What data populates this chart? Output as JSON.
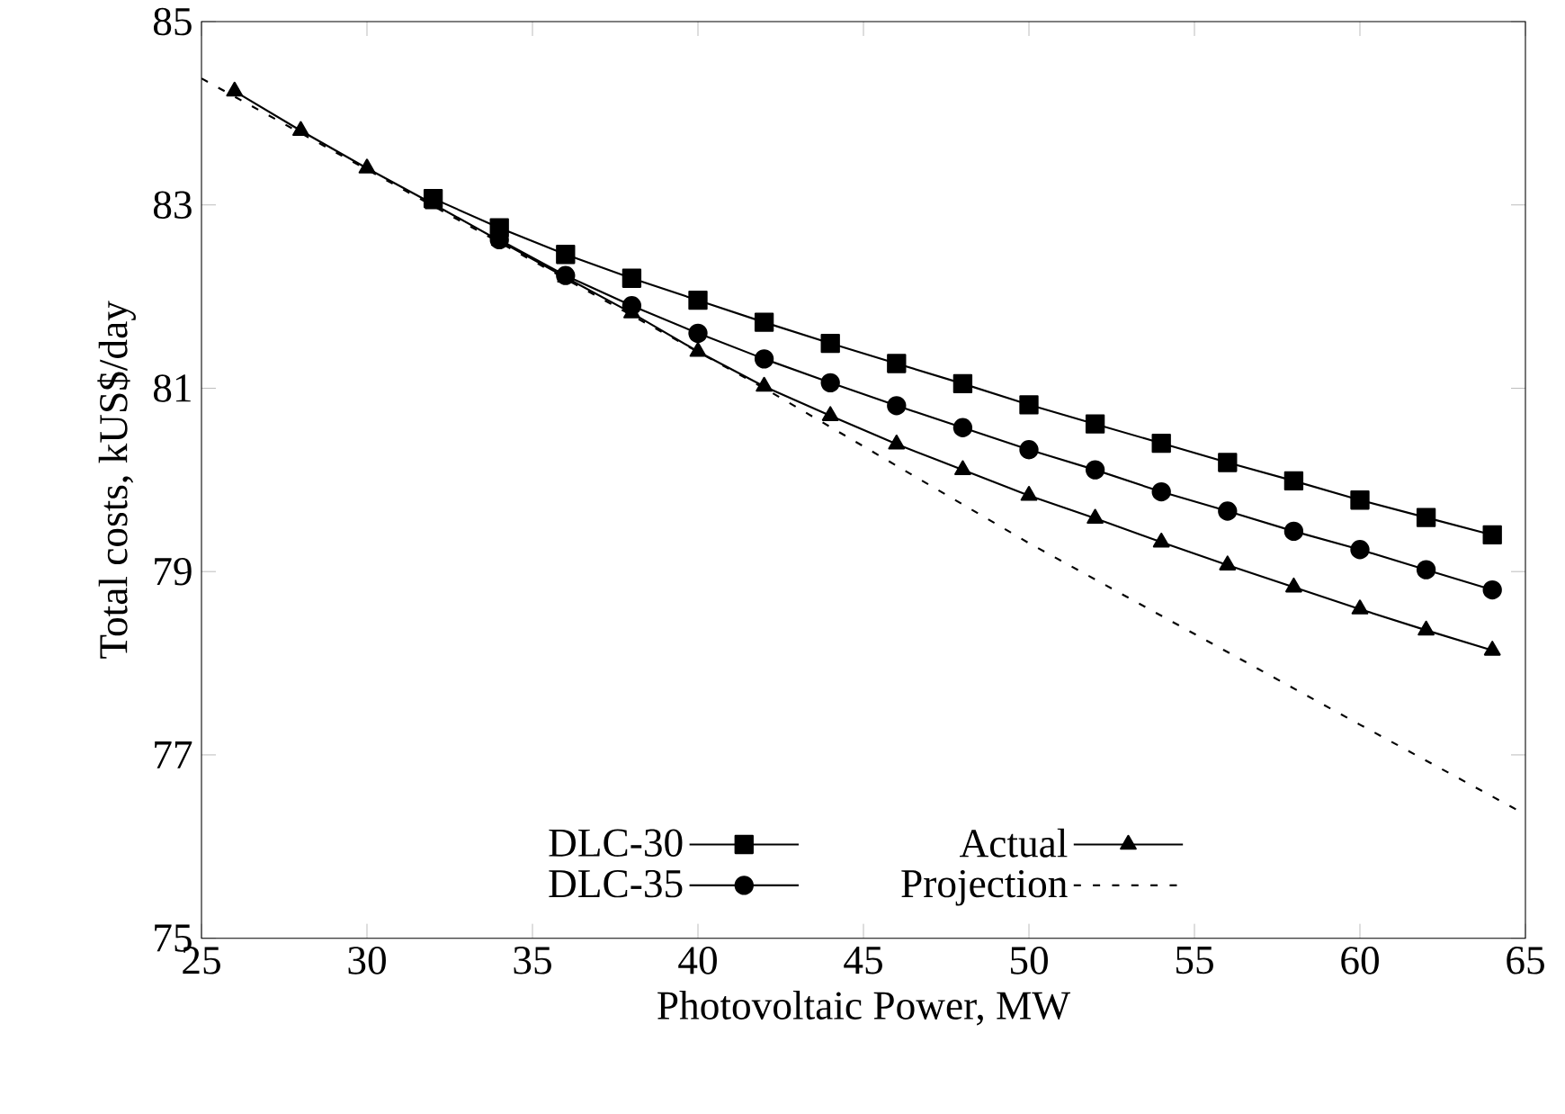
{
  "chart_data": {
    "type": "line",
    "xlabel": "Photovoltaic Power, MW",
    "ylabel": "Total costs, kUS$/day",
    "xlim": [
      25,
      65
    ],
    "ylim": [
      75,
      85
    ],
    "xticks": [
      25,
      30,
      35,
      40,
      45,
      50,
      55,
      60,
      65
    ],
    "yticks": [
      75,
      77,
      79,
      81,
      83,
      85
    ],
    "grid": false,
    "legend": "bottom",
    "series": [
      {
        "name": "DLC-30",
        "color": "#000000",
        "marker": "square",
        "line_style": "solid",
        "x": [
          32,
          34,
          36,
          38,
          40,
          42,
          44,
          46,
          48,
          50,
          52,
          54,
          56,
          58,
          60,
          62,
          64
        ],
        "values": [
          83.07,
          82.75,
          82.46,
          82.2,
          81.96,
          81.72,
          81.49,
          81.27,
          81.05,
          80.82,
          80.61,
          80.4,
          80.19,
          79.99,
          79.78,
          79.59,
          79.4
        ]
      },
      {
        "name": "DLC-35",
        "color": "#000000",
        "marker": "circle",
        "line_style": "solid",
        "x": [
          34,
          36,
          38,
          40,
          42,
          44,
          46,
          48,
          50,
          52,
          54,
          56,
          58,
          60,
          62,
          64
        ],
        "values": [
          82.62,
          82.23,
          81.9,
          81.6,
          81.32,
          81.06,
          80.81,
          80.57,
          80.33,
          80.11,
          79.87,
          79.66,
          79.44,
          79.24,
          79.02,
          78.8
        ]
      },
      {
        "name": "Actual",
        "color": "#000000",
        "marker": "triangle",
        "line_style": "solid",
        "x": [
          26,
          28,
          30,
          32,
          34,
          36,
          38,
          40,
          42,
          44,
          46,
          48,
          50,
          52,
          54,
          56,
          58,
          60,
          62,
          64
        ],
        "values": [
          84.24,
          83.81,
          83.4,
          83.01,
          82.61,
          82.21,
          81.82,
          81.4,
          81.02,
          80.7,
          80.39,
          80.11,
          79.83,
          79.58,
          79.32,
          79.07,
          78.83,
          78.59,
          78.36,
          78.14
        ]
      },
      {
        "name": "Projection",
        "color": "#000000",
        "marker": "none",
        "line_style": "dashed",
        "x": [
          25,
          42,
          50,
          60,
          65
        ],
        "values": [
          84.38,
          81.0,
          79.31,
          77.33,
          76.35
        ]
      }
    ]
  }
}
